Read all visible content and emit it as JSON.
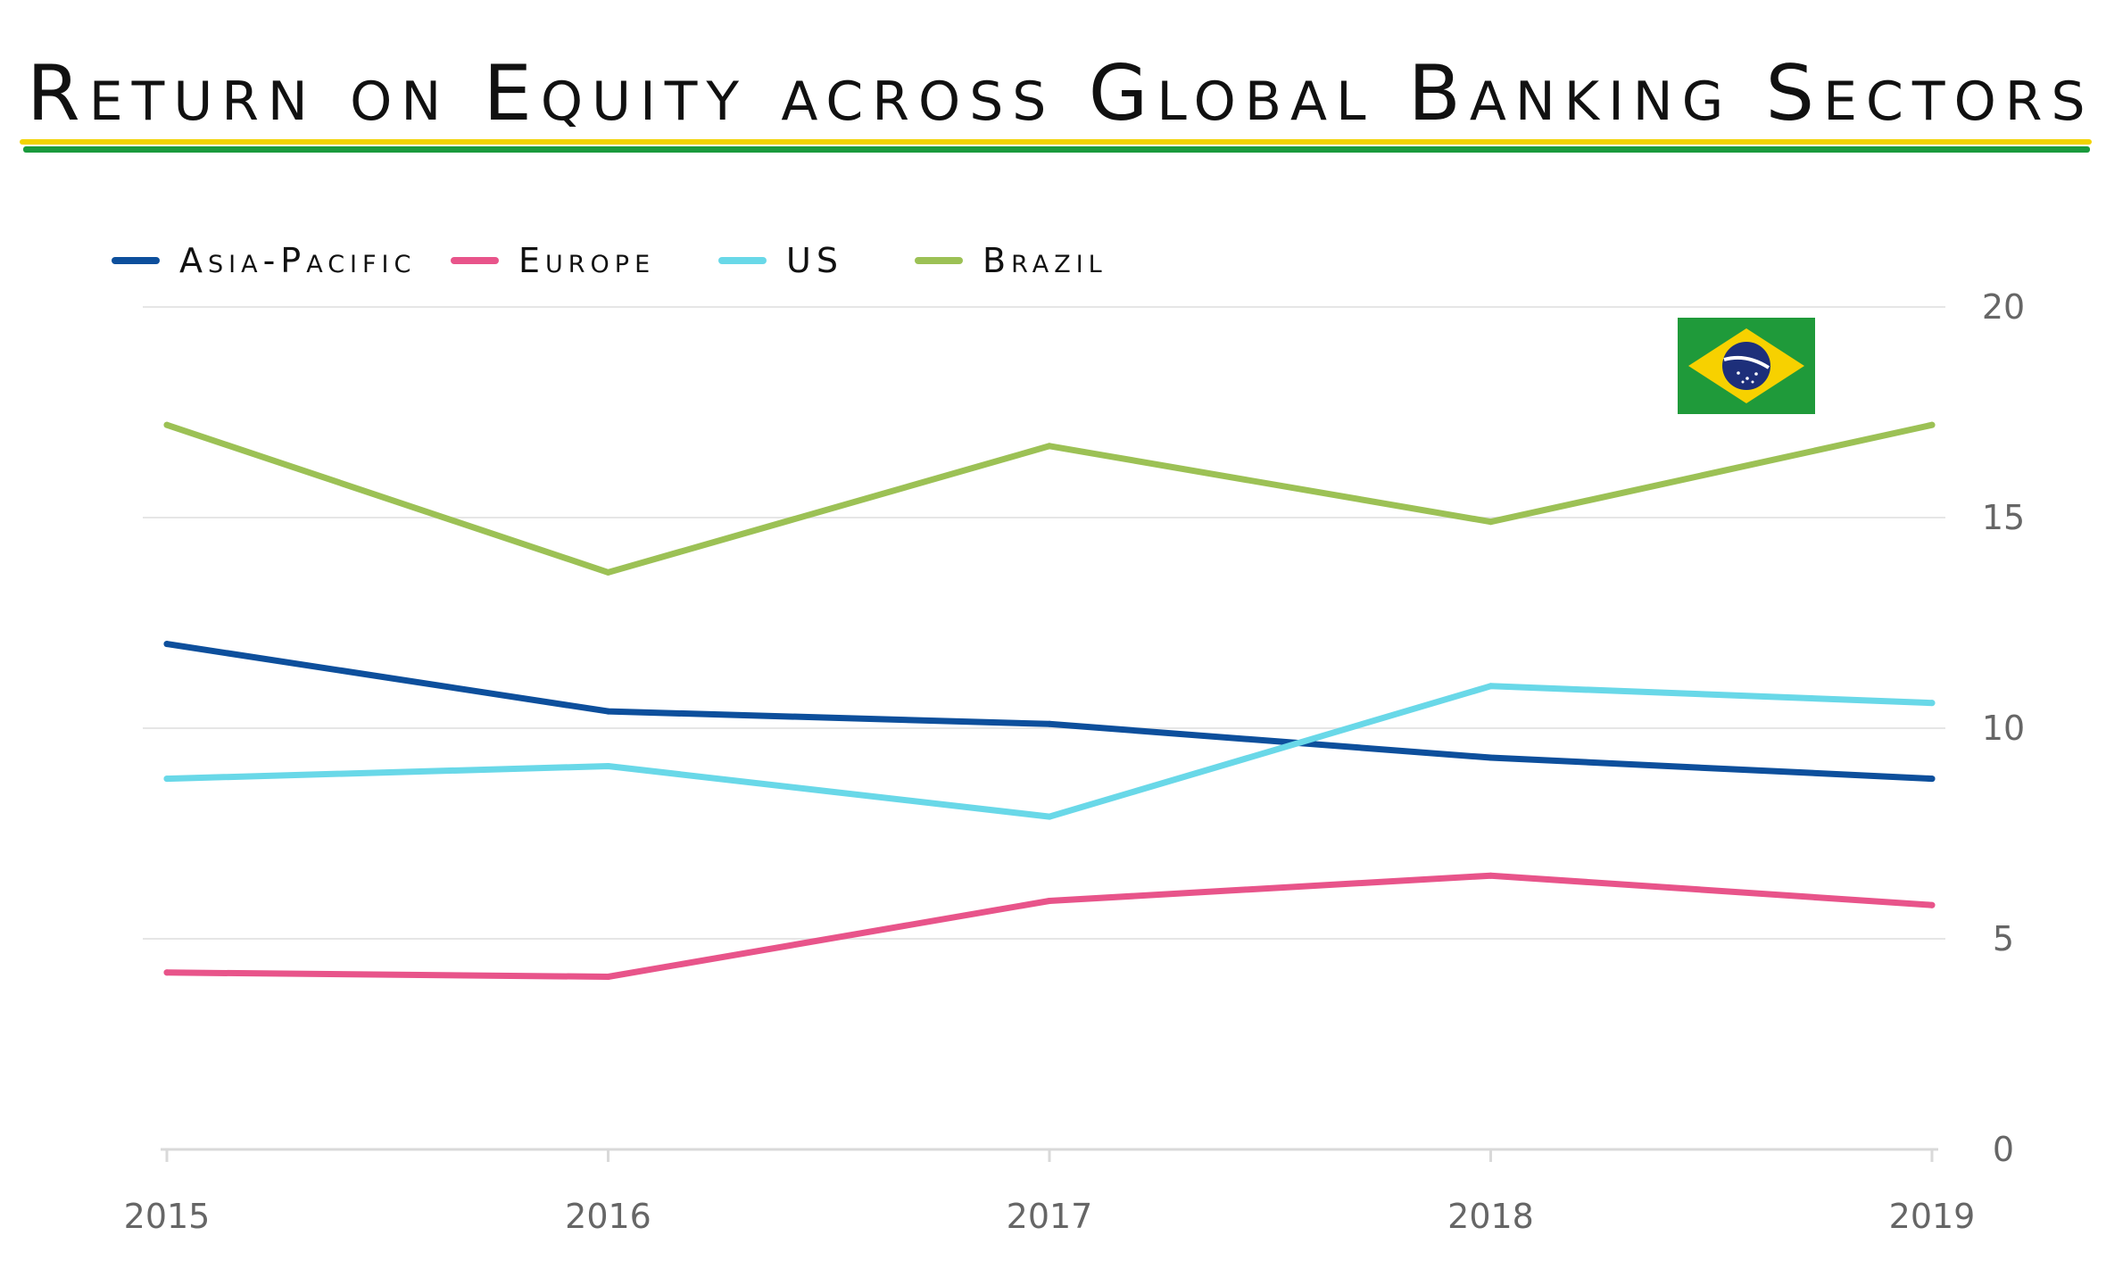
{
  "title": "Return on Equity across Global Banking Sectors",
  "colors": {
    "title_rule_top": "#f2d300",
    "title_rule_bottom": "#1a9a3c",
    "grid": "#e6e6e6",
    "axis": "#d9d9d9",
    "tick_text": "#666666"
  },
  "flag": {
    "icon": "brazil-flag-icon"
  },
  "chart_data": {
    "type": "line",
    "x": [
      "2015",
      "2016",
      "2017",
      "2018",
      "2019"
    ],
    "y_ticks": [
      "0",
      "5",
      "10",
      "15",
      "20"
    ],
    "ylim": [
      0,
      20
    ],
    "y_axis_side": "right",
    "grid": true,
    "legend_placement": "top-left",
    "series": [
      {
        "name": "Asia-Pacific",
        "color": "#0d4f9c",
        "values": [
          12.0,
          10.4,
          10.1,
          9.3,
          8.8
        ]
      },
      {
        "name": "Europe",
        "color": "#e8548a",
        "values": [
          4.2,
          4.1,
          5.9,
          6.5,
          5.8
        ]
      },
      {
        "name": "US",
        "color": "#69d8e8",
        "values": [
          8.8,
          9.1,
          7.9,
          11.0,
          10.6
        ]
      },
      {
        "name": "Brazil",
        "color": "#9cc155",
        "values": [
          17.2,
          13.7,
          16.7,
          14.9,
          17.2
        ]
      }
    ]
  }
}
